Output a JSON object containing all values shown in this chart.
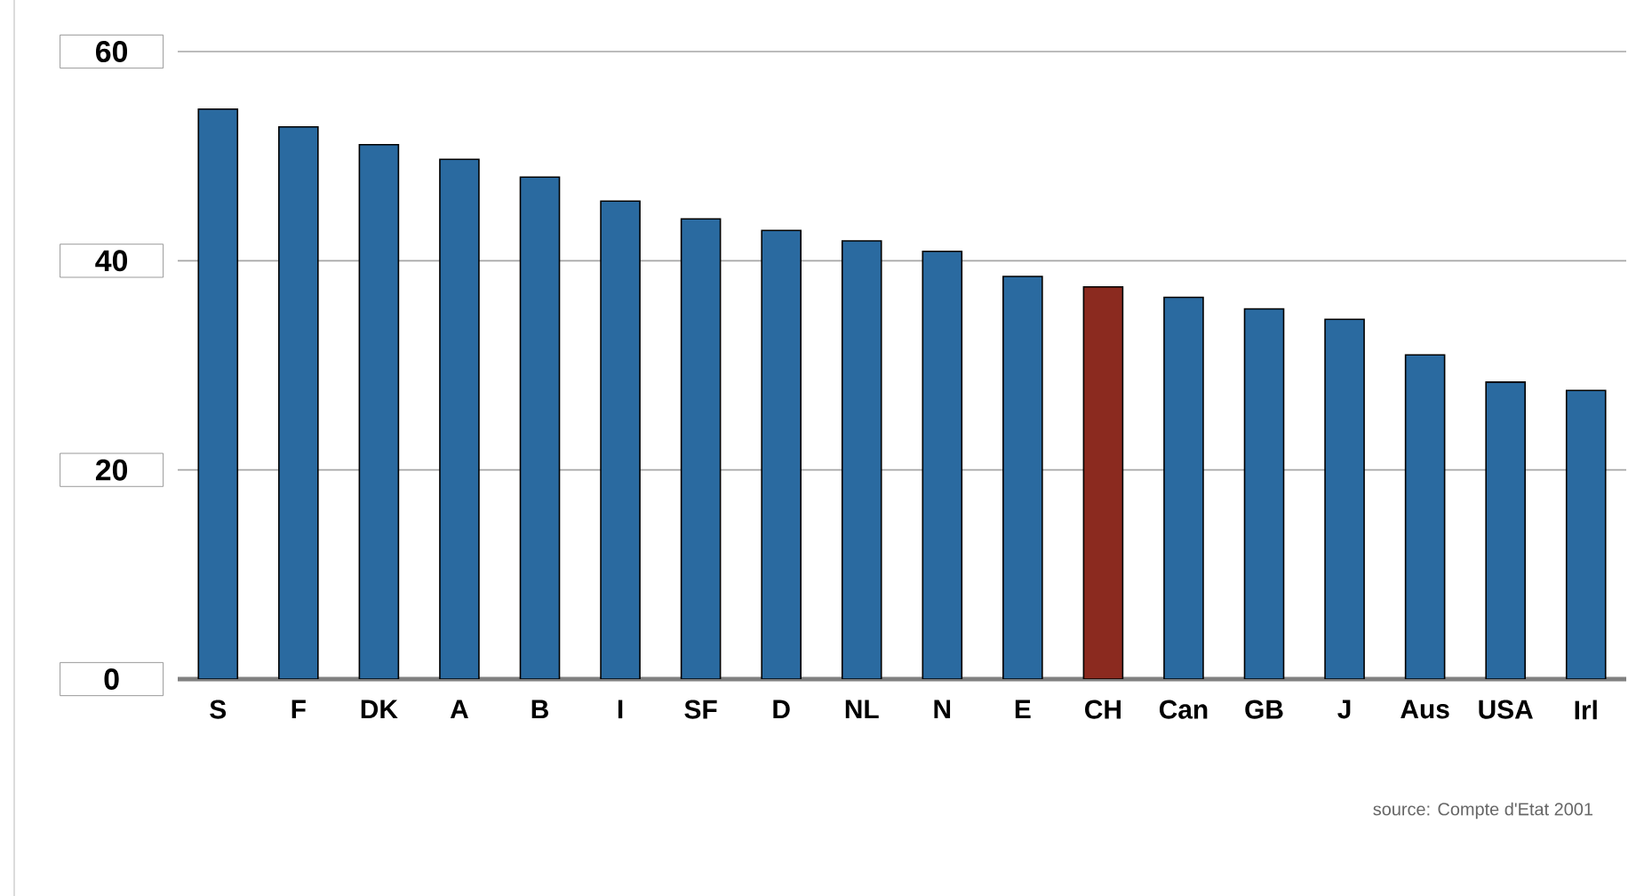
{
  "chart_data": {
    "type": "bar",
    "categories": [
      "S",
      "F",
      "DK",
      "A",
      "B",
      "I",
      "SF",
      "D",
      "NL",
      "N",
      "E",
      "CH",
      "Can",
      "GB",
      "J",
      "Aus",
      "USA",
      "Irl"
    ],
    "values": [
      54.5,
      52.8,
      51.1,
      49.7,
      48.0,
      45.7,
      44.0,
      42.9,
      41.9,
      40.9,
      38.5,
      37.5,
      36.5,
      35.4,
      34.4,
      31.0,
      28.4,
      27.6
    ],
    "colors": [
      "#2a6aa0",
      "#2a6aa0",
      "#2a6aa0",
      "#2a6aa0",
      "#2a6aa0",
      "#2a6aa0",
      "#2a6aa0",
      "#2a6aa0",
      "#2a6aa0",
      "#2a6aa0",
      "#2a6aa0",
      "#8b2a1f",
      "#2a6aa0",
      "#2a6aa0",
      "#2a6aa0",
      "#2a6aa0",
      "#2a6aa0",
      "#2a6aa0"
    ],
    "ylim": [
      0,
      60
    ],
    "yticks": [
      0,
      20,
      40,
      60
    ],
    "grid": "y",
    "annotations": [
      "source: Compte d'Etat 2001"
    ]
  }
}
